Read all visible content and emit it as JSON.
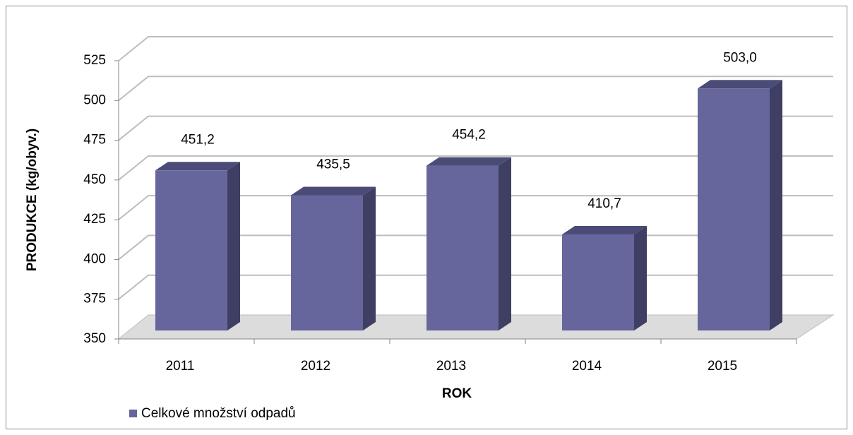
{
  "chart_data": {
    "type": "bar",
    "x_label": "ROK",
    "y_label": "PRODUKCE (kg/obyv.)",
    "categories": [
      "2011",
      "2012",
      "2013",
      "2014",
      "2015"
    ],
    "series": [
      {
        "name": "Celkové množství odpadů",
        "color": "#66669c",
        "values": [
          451.2,
          435.5,
          454.2,
          410.7,
          503.0
        ],
        "value_labels": [
          "451,2",
          "435,5",
          "454,2",
          "410,7",
          "503,0"
        ]
      }
    ],
    "ylim": [
      350,
      525
    ],
    "yticks": [
      350,
      375,
      400,
      425,
      450,
      475,
      500,
      525
    ],
    "grid": true,
    "legend": "bottom-left"
  }
}
